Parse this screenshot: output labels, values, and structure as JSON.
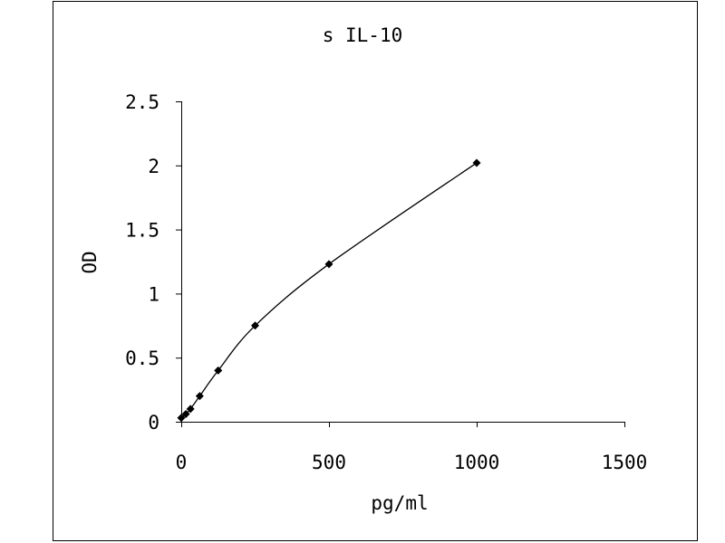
{
  "chart_data": {
    "type": "scatter",
    "title": "s IL-10",
    "x_label": "pg/ml",
    "y_label": "OD",
    "x": [
      0,
      15.6,
      31.25,
      62.5,
      125,
      250,
      500,
      1000
    ],
    "values": [
      0.03,
      0.06,
      0.1,
      0.2,
      0.4,
      0.75,
      1.23,
      2.02
    ],
    "color": "#000000",
    "line": "smooth",
    "xlim": [
      0,
      1500
    ],
    "xticks": [
      0,
      500,
      1000,
      1500
    ],
    "ylim": [
      0,
      2.5
    ],
    "yticks": [
      0,
      0.5,
      1,
      1.5,
      2,
      2.5
    ]
  }
}
